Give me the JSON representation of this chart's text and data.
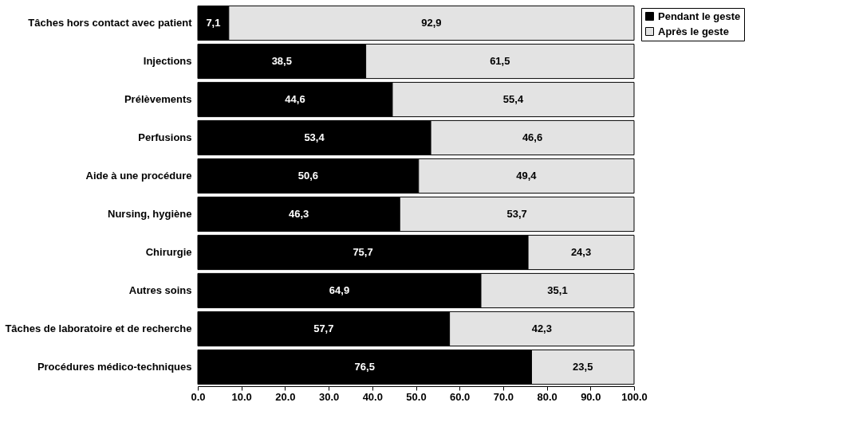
{
  "chart_data": {
    "type": "bar",
    "orientation": "horizontal",
    "stacked": true,
    "grid": false,
    "legend": "top right",
    "categories": [
      "Tâches hors contact avec patient",
      "Injections",
      "Prélèvements",
      "Perfusions",
      "Aide à une procédure",
      "Nursing, hygiène",
      "Chirurgie",
      "Autres soins",
      "Tâches de laboratoire et de recherche",
      "Procédures médico-techniques"
    ],
    "series": [
      {
        "name": "Pendant le geste",
        "color": "#000000",
        "values": [
          7.1,
          38.5,
          44.6,
          53.4,
          50.6,
          46.3,
          75.7,
          64.9,
          57.7,
          76.5
        ],
        "value_labels": [
          "7,1",
          "38,5",
          "44,6",
          "53,4",
          "50,6",
          "46,3",
          "75,7",
          "64,9",
          "57,7",
          "76,5"
        ]
      },
      {
        "name": "Après le geste",
        "color": "#e3e3e3",
        "values": [
          92.9,
          61.5,
          55.4,
          46.6,
          49.4,
          53.7,
          24.3,
          35.1,
          42.3,
          23.5
        ],
        "value_labels": [
          "92,9",
          "61,5",
          "55,4",
          "46,6",
          "49,4",
          "53,7",
          "24,3",
          "35,1",
          "42,3",
          "23,5"
        ]
      }
    ],
    "xlim": [
      0,
      100
    ],
    "xticks": [
      {
        "value": 0,
        "label": "0.0"
      },
      {
        "value": 10,
        "label": "10.0"
      },
      {
        "value": 20,
        "label": "20.0"
      },
      {
        "value": 30,
        "label": "30.0"
      },
      {
        "value": 40,
        "label": "40.0"
      },
      {
        "value": 50,
        "label": "50.0"
      },
      {
        "value": 60,
        "label": "60.0"
      },
      {
        "value": 70,
        "label": "70.0"
      },
      {
        "value": 80,
        "label": "80.0"
      },
      {
        "value": 90,
        "label": "90.0"
      },
      {
        "value": 100,
        "label": "100.0"
      }
    ]
  }
}
